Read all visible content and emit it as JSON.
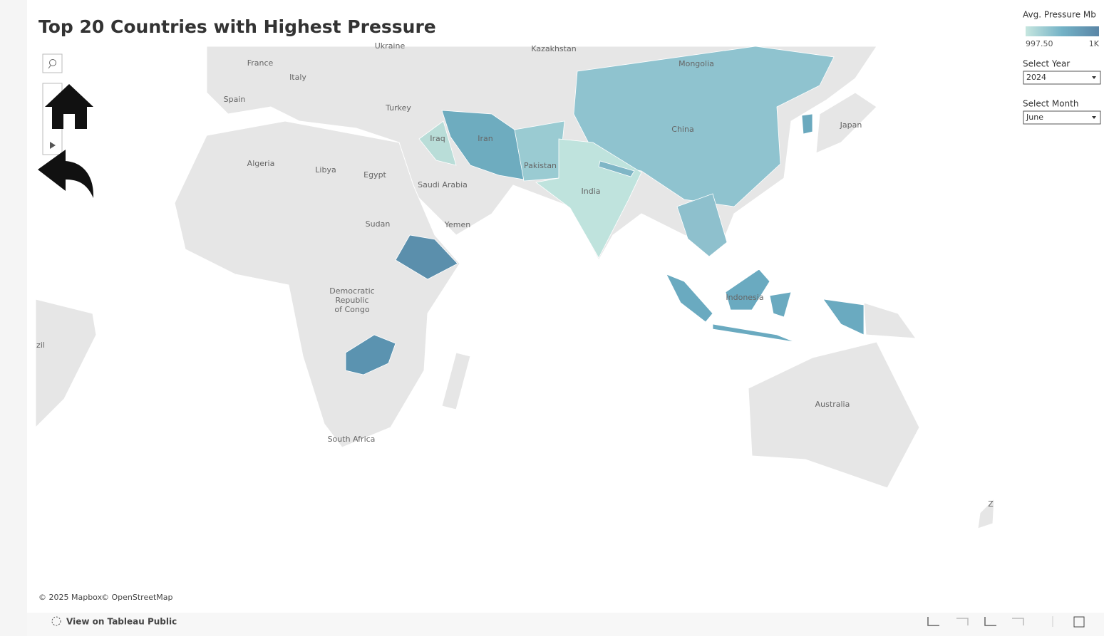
{
  "header": {
    "title": "Top 20 Countries with Highest Pressure"
  },
  "legend": {
    "title": "Avg. Pressure Mb",
    "min_label": "997.50",
    "max_label": "1K"
  },
  "filters": [
    {
      "label": "Select Year",
      "value": "2024"
    },
    {
      "label": "Select Month",
      "value": "June"
    }
  ],
  "map": {
    "labels": [
      "Ukraine",
      "Kazakhstan",
      "France",
      "Mongolia",
      "Italy",
      "Spain",
      "Turkey",
      "Iraq",
      "Iran",
      "China",
      "Japan",
      "Algeria",
      "Libya",
      "Egypt",
      "Saudi Arabia",
      "Pakistan",
      "India",
      "Sudan",
      "Yemen",
      "Democratic",
      "Republic",
      "of Congo",
      "zil",
      "Indonesia",
      "Australia",
      "South Africa",
      "Z"
    ],
    "attribution": [
      "© 2025 Mapbox",
      "© OpenStreetMap"
    ]
  },
  "footer": {
    "link": "View on Tableau Public"
  }
}
